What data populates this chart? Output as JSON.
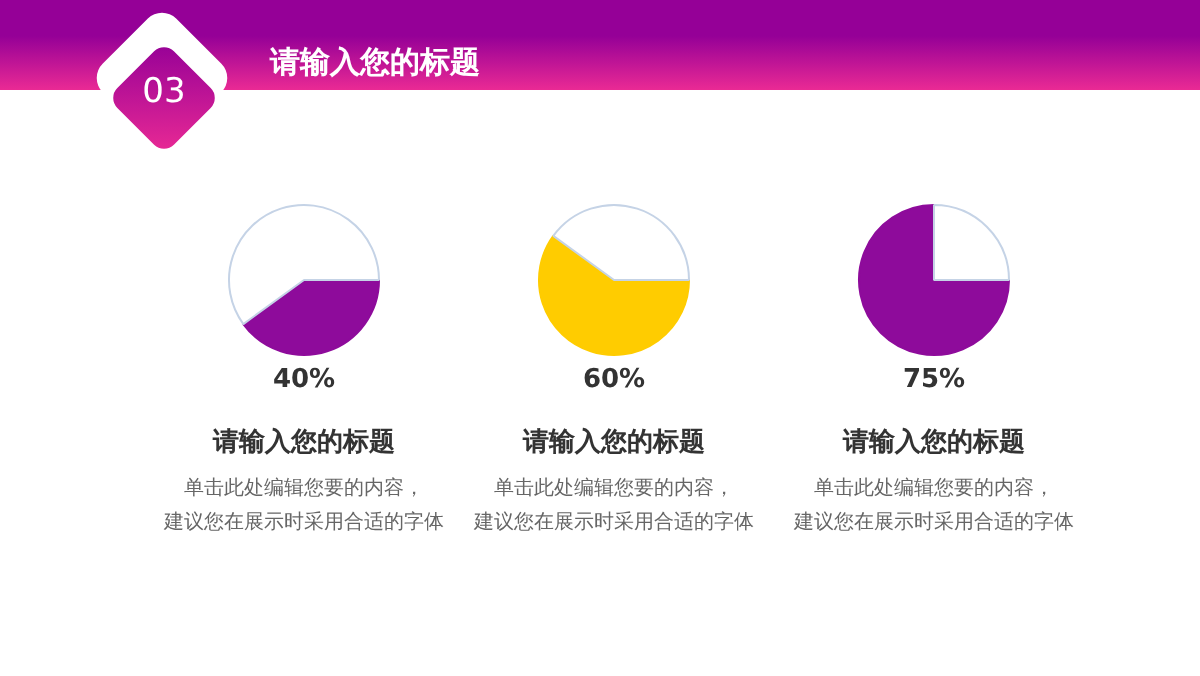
{
  "chart_data": [
    {
      "type": "pie",
      "title": "请输入您的标题",
      "categories": [
        null,
        null
      ],
      "values": [
        40,
        60
      ],
      "colors": [
        "#8e0b9b",
        "#ffffff"
      ],
      "value_labels": [
        "40%",
        null
      ],
      "annotations": [
        "03",
        "请输入您的标题",
        "单击此处编辑您要的内容，",
        "建议您在展示时采用合适的字体"
      ]
    },
    {
      "type": "pie",
      "title": "请输入您的标题",
      "categories": [
        null,
        null
      ],
      "values": [
        60,
        40
      ],
      "colors": [
        "#ffcc00",
        "#ffffff"
      ],
      "value_labels": [
        "60%",
        null
      ],
      "annotations": [
        "单击此处编辑您要的内容，",
        "建议您在展示时采用合适的字体"
      ]
    },
    {
      "type": "pie",
      "title": "请输入您的标题",
      "categories": [
        null,
        null
      ],
      "values": [
        75,
        25
      ],
      "colors": [
        "#8e0b9b",
        "#ffffff"
      ],
      "value_labels": [
        "75%",
        null
      ],
      "annotations": [
        "单击此处编辑您要的内容，",
        "建议您在展示时采用合适的字体"
      ]
    }
  ]
}
